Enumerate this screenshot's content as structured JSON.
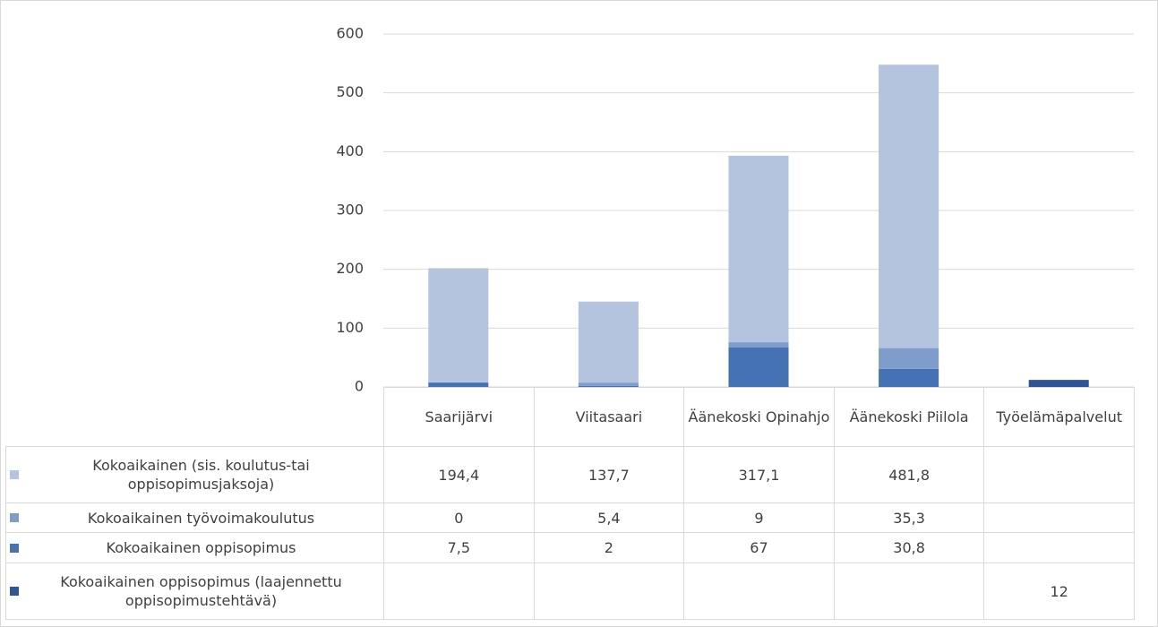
{
  "chart_data": {
    "type": "stacked-bar",
    "categories": [
      "Saarijärvi",
      "Viitasaari",
      "Äänekoski Opinahjo",
      "Äänekoski Piilola",
      "Työelämäpalvelut"
    ],
    "series": [
      {
        "name": "Kokoaikainen (sis. koulutus-tai oppisopimusjaksoja)",
        "color": "#b4c3de",
        "values": [
          194.4,
          137.7,
          317.1,
          481.8,
          null
        ],
        "value_labels": [
          "194,4",
          "137,7",
          "317,1",
          "481,8",
          null
        ]
      },
      {
        "name": "Kokoaikainen työvoimakoulutus",
        "color": "#7f9dcb",
        "values": [
          0,
          5.4,
          9,
          35.3,
          null
        ],
        "value_labels": [
          "0",
          "5,4",
          "9",
          "35,3",
          null
        ]
      },
      {
        "name": "Kokoaikainen oppisopimus",
        "color": "#4472b4",
        "values": [
          7.5,
          2,
          67,
          30.8,
          null
        ],
        "value_labels": [
          "7,5",
          "2",
          "67",
          "30,8",
          null
        ]
      },
      {
        "name": "Kokoaikainen oppisopimus (laajennettu oppisopimustehtävä)",
        "color": "#2f5597",
        "values": [
          null,
          null,
          null,
          null,
          12
        ],
        "value_labels": [
          null,
          null,
          null,
          null,
          "12"
        ]
      }
    ],
    "ylim": [
      0,
      600
    ],
    "yticks": [
      0,
      100,
      200,
      300,
      400,
      500,
      600
    ],
    "grid": true
  }
}
